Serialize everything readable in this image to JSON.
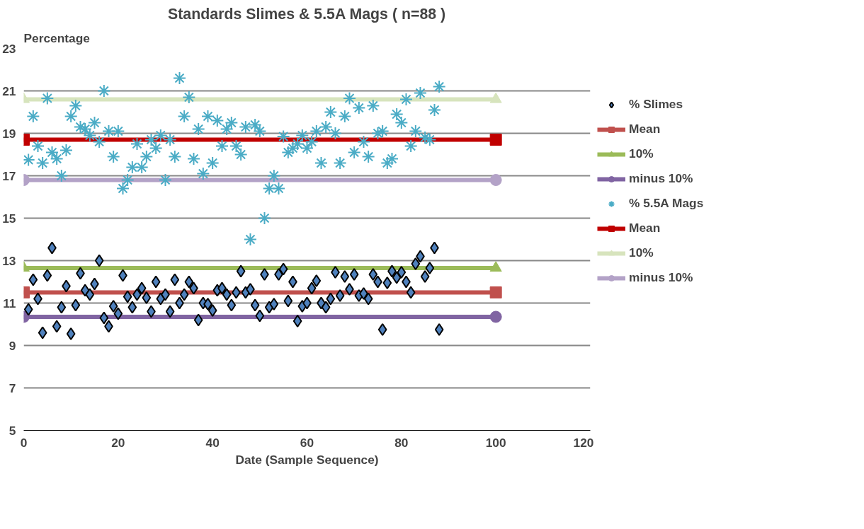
{
  "chart_data": {
    "type": "scatter",
    "title": "Standards Slimes & 5.5A Mags ( n=88 )",
    "xlabel": "Date (Sample Sequence)",
    "ylabel": "Percentage",
    "xlim": [
      0,
      120
    ],
    "xticks": [
      0,
      20,
      40,
      60,
      80,
      100,
      120
    ],
    "ylim": [
      5,
      23
    ],
    "yticks": [
      5,
      7,
      9,
      11,
      13,
      15,
      17,
      19,
      21,
      23
    ],
    "grid": "y",
    "legend": "right",
    "series": [
      {
        "name": "% Slimes",
        "marker": "diamond",
        "color": "#4f81bd",
        "x": [
          1,
          2,
          3,
          4,
          5,
          6,
          7,
          8,
          9,
          10,
          11,
          12,
          13,
          14,
          15,
          16,
          17,
          18,
          19,
          20,
          21,
          22,
          23,
          24,
          25,
          26,
          27,
          28,
          29,
          30,
          31,
          32,
          33,
          34,
          35,
          36,
          37,
          38,
          39,
          40,
          41,
          42,
          43,
          44,
          45,
          46,
          47,
          48,
          49,
          50,
          51,
          52,
          53,
          54,
          55,
          56,
          57,
          58,
          59,
          60,
          61,
          62,
          63,
          64,
          65,
          66,
          67,
          68,
          69,
          70,
          71,
          72,
          73,
          74,
          75,
          76,
          77,
          78,
          79,
          80,
          81,
          82,
          83,
          84,
          85,
          86,
          87,
          88
        ],
        "values": [
          10.7,
          12.1,
          11.2,
          9.6,
          12.3,
          13.6,
          9.9,
          10.8,
          11.8,
          9.55,
          10.9,
          12.4,
          11.6,
          11.4,
          11.9,
          13.0,
          10.3,
          9.9,
          10.85,
          10.5,
          12.3,
          11.3,
          10.8,
          11.4,
          11.7,
          11.25,
          10.6,
          12.0,
          11.2,
          11.4,
          10.6,
          12.1,
          11.0,
          11.4,
          12.0,
          11.7,
          10.2,
          11.0,
          10.95,
          10.65,
          11.6,
          11.7,
          11.4,
          10.9,
          11.5,
          12.5,
          11.5,
          11.65,
          10.9,
          10.4,
          12.35,
          10.8,
          10.95,
          12.35,
          12.6,
          11.1,
          12.0,
          10.15,
          10.85,
          11.0,
          11.7,
          12.05,
          11.0,
          10.8,
          11.2,
          12.45,
          11.35,
          12.25,
          11.65,
          12.35,
          11.35,
          11.45,
          11.2,
          12.35,
          12.0,
          9.75,
          11.95,
          12.5,
          12.2,
          12.45,
          12.0,
          11.5,
          12.85,
          13.2,
          12.25,
          12.65,
          13.6,
          9.75
        ]
      },
      {
        "name": "Mean",
        "type": "line",
        "marker": "square",
        "color": "#c0504d",
        "x": [
          0,
          100
        ],
        "values": [
          11.5,
          11.5
        ]
      },
      {
        "name": "10%",
        "type": "line",
        "marker": "triangle",
        "color": "#9bbb59",
        "x": [
          0,
          100
        ],
        "values": [
          12.65,
          12.65
        ]
      },
      {
        "name": "minus 10%",
        "type": "line",
        "marker": "circle",
        "color": "#8064a2",
        "x": [
          0,
          100
        ],
        "values": [
          10.35,
          10.35
        ]
      },
      {
        "name": "% 5.5A Mags",
        "marker": "cross",
        "color": "#4bacc6",
        "x": [
          1,
          2,
          3,
          4,
          5,
          6,
          7,
          8,
          9,
          10,
          11,
          12,
          13,
          14,
          15,
          16,
          17,
          18,
          19,
          20,
          21,
          22,
          23,
          24,
          25,
          26,
          27,
          28,
          29,
          30,
          31,
          32,
          33,
          34,
          35,
          36,
          37,
          38,
          39,
          40,
          41,
          42,
          43,
          44,
          45,
          46,
          47,
          48,
          49,
          50,
          51,
          52,
          53,
          54,
          55,
          56,
          57,
          58,
          59,
          60,
          61,
          62,
          63,
          64,
          65,
          66,
          67,
          68,
          69,
          70,
          71,
          72,
          73,
          74,
          75,
          76,
          77,
          78,
          79,
          80,
          81,
          82,
          83,
          84,
          85,
          86,
          87,
          88
        ],
        "values": [
          17.75,
          19.8,
          18.4,
          17.6,
          20.65,
          18.1,
          17.8,
          17.0,
          18.2,
          19.8,
          20.3,
          19.3,
          19.2,
          18.9,
          19.5,
          18.6,
          21.0,
          19.1,
          17.9,
          19.1,
          16.4,
          16.8,
          17.4,
          18.5,
          17.4,
          17.9,
          18.7,
          18.3,
          18.9,
          16.8,
          18.7,
          17.9,
          21.6,
          19.8,
          20.7,
          17.8,
          19.2,
          17.1,
          19.8,
          17.6,
          19.6,
          18.4,
          19.2,
          19.5,
          18.4,
          18.0,
          19.3,
          14.0,
          19.4,
          19.1,
          15.0,
          16.4,
          17.0,
          16.4,
          18.85,
          18.1,
          18.3,
          18.5,
          18.9,
          18.3,
          18.6,
          19.1,
          17.6,
          19.3,
          20.0,
          19.0,
          17.6,
          19.8,
          20.65,
          18.1,
          20.2,
          18.6,
          17.9,
          20.3,
          19.0,
          19.1,
          17.6,
          17.8,
          19.9,
          19.5,
          20.6,
          18.4,
          19.1,
          20.9,
          18.8,
          18.7,
          20.1,
          21.2
        ]
      },
      {
        "name": "Mean",
        "type": "line",
        "marker": "square",
        "color": "#c00000",
        "x": [
          0,
          100
        ],
        "values": [
          18.7,
          18.7
        ]
      },
      {
        "name": "10%",
        "type": "line",
        "marker": "triangle",
        "color": "#d7e4bd",
        "x": [
          0,
          100
        ],
        "values": [
          20.6,
          20.6
        ]
      },
      {
        "name": "minus 10%",
        "type": "line",
        "marker": "circle",
        "color": "#b3a2c7",
        "x": [
          0,
          100
        ],
        "values": [
          16.8,
          16.8
        ]
      }
    ]
  }
}
